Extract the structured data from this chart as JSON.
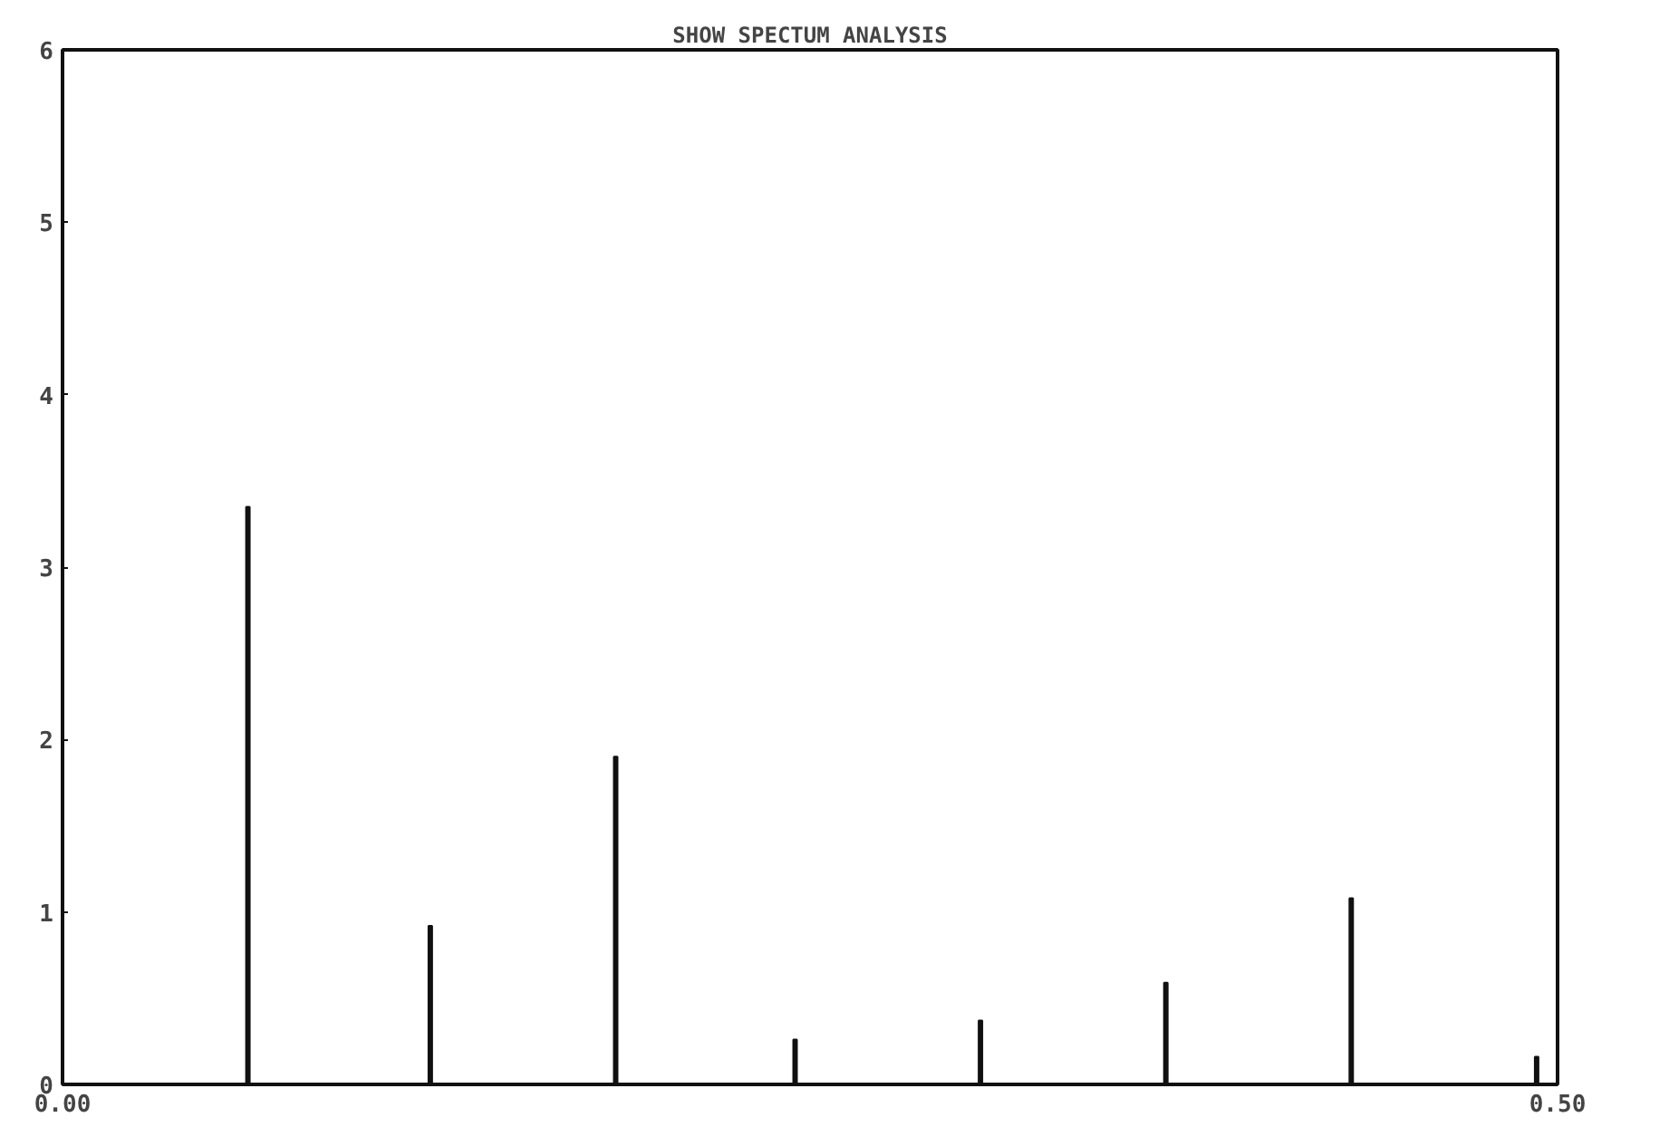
{
  "chart_data": {
    "type": "bar",
    "title": "SHOW SPECTUM ANALYSIS",
    "x": [
      0.062,
      0.123,
      0.185,
      0.245,
      0.307,
      0.369,
      0.431,
      0.493
    ],
    "values": [
      3.35,
      0.92,
      1.9,
      0.26,
      0.37,
      0.59,
      1.08,
      0.16
    ],
    "color": "#111111",
    "xlim": [
      0,
      0.5
    ],
    "xticks": [
      {
        "value": 0,
        "label": "0.00"
      },
      {
        "value": 0.5,
        "label": "0.50"
      }
    ],
    "ylim": [
      0,
      6
    ],
    "yticks": [
      0,
      1,
      2,
      3,
      4,
      5,
      6
    ],
    "grid": false
  }
}
